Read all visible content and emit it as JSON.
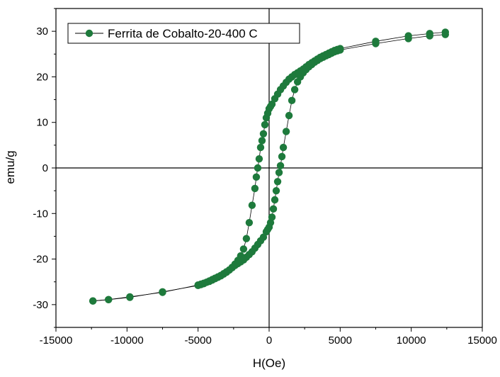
{
  "chart_data": {
    "type": "scatter",
    "title": "",
    "xlabel": "H(Oe)",
    "ylabel": "emu/g",
    "xlim": [
      -15000,
      15000
    ],
    "ylim": [
      -35,
      35
    ],
    "x_ticks": [
      -15000,
      -10000,
      -5000,
      0,
      5000,
      10000,
      15000
    ],
    "y_ticks": [
      -30,
      -20,
      -10,
      0,
      10,
      20,
      30
    ],
    "x_tick_labels": [
      "-15000",
      "-10000",
      "-5000",
      "0",
      "5000",
      "10000",
      "15000"
    ],
    "y_tick_labels": [
      "-30",
      "-20",
      "-10",
      "0",
      "10",
      "20",
      "30"
    ],
    "grid": false,
    "legend": {
      "position": "top-left",
      "entries": [
        "Ferrita de Cobalto-20-400 C"
      ]
    },
    "colors": {
      "marker": "#1e7a3c",
      "line": "#000000"
    },
    "series": [
      {
        "name": "Ferrita de Cobalto-20-400 C",
        "branches": [
          {
            "x": [
              12400,
              11300,
              9800,
              7500,
              5000,
              4800,
              4600,
              4400,
              4200,
              4000,
              3800,
              3600,
              3400,
              3200,
              3000,
              2800,
              2600,
              2400,
              2200,
              2000,
              1800,
              1600,
              1400,
              1200,
              1000,
              800,
              600,
              400,
              200,
              100,
              0,
              -100,
              -200,
              -300,
              -400,
              -500,
              -600,
              -700,
              -800,
              -900,
              -1000,
              -1200,
              -1400,
              -1600,
              -1800,
              -2000,
              -2200,
              -2400,
              -2600,
              -2800,
              -3000,
              -3200,
              -3400,
              -3600,
              -3800,
              -4000,
              -4200,
              -4400,
              -4600,
              -4800,
              -5000,
              -7500,
              -9800,
              -11300,
              -12400
            ],
            "y": [
              29.8,
              29.5,
              29.0,
              27.8,
              26.2,
              26.0,
              25.8,
              25.5,
              25.2,
              24.9,
              24.6,
              24.3,
              23.9,
              23.5,
              23.1,
              22.7,
              22.2,
              21.7,
              21.3,
              20.9,
              20.5,
              20.0,
              19.5,
              18.8,
              18.0,
              17.2,
              16.2,
              15.2,
              14.0,
              13.5,
              13.0,
              12.0,
              11.0,
              9.5,
              7.5,
              6.0,
              4.5,
              2.0,
              0.0,
              -2.0,
              -4.5,
              -8.2,
              -12.0,
              -15.5,
              -17.8,
              -19.3,
              -20.3,
              -21.1,
              -21.8,
              -22.4,
              -22.9,
              -23.3,
              -23.7,
              -24.0,
              -24.3,
              -24.6,
              -24.9,
              -25.1,
              -25.3,
              -25.5,
              -25.7,
              -27.3,
              -28.3,
              -28.9,
              -29.2
            ]
          },
          {
            "x": [
              -12400,
              -11300,
              -9800,
              -7500,
              -5000,
              -4800,
              -4600,
              -4400,
              -4200,
              -4000,
              -3800,
              -3600,
              -3400,
              -3200,
              -3000,
              -2800,
              -2600,
              -2400,
              -2200,
              -2000,
              -1800,
              -1600,
              -1400,
              -1200,
              -1000,
              -800,
              -600,
              -400,
              -200,
              -100,
              0,
              100,
              200,
              300,
              400,
              500,
              600,
              700,
              800,
              900,
              1000,
              1200,
              1400,
              1600,
              1800,
              2000,
              2200,
              2400,
              2600,
              2800,
              3000,
              3200,
              3400,
              3600,
              3800,
              4000,
              4200,
              4400,
              4600,
              4800,
              5000,
              7500,
              9800,
              11300,
              12400
            ],
            "y": [
              -29.2,
              -28.9,
              -28.4,
              -27.2,
              -25.8,
              -25.6,
              -25.4,
              -25.1,
              -24.8,
              -24.5,
              -24.2,
              -23.9,
              -23.6,
              -23.2,
              -22.8,
              -22.4,
              -21.9,
              -21.4,
              -21.0,
              -20.6,
              -20.2,
              -19.6,
              -19.0,
              -18.4,
              -17.6,
              -16.8,
              -16.0,
              -15.2,
              -14.0,
              -13.5,
              -13.0,
              -12.0,
              -10.8,
              -9.0,
              -7.0,
              -5.0,
              -3.0,
              -1.0,
              0.5,
              2.5,
              4.5,
              8.0,
              11.5,
              14.8,
              17.2,
              18.9,
              20.0,
              20.9,
              21.6,
              22.2,
              22.7,
              23.2,
              23.6,
              24.0,
              24.3,
              24.6,
              24.9,
              25.2,
              25.5,
              25.7,
              25.9,
              27.3,
              28.4,
              29.0,
              29.3
            ]
          }
        ]
      }
    ]
  }
}
